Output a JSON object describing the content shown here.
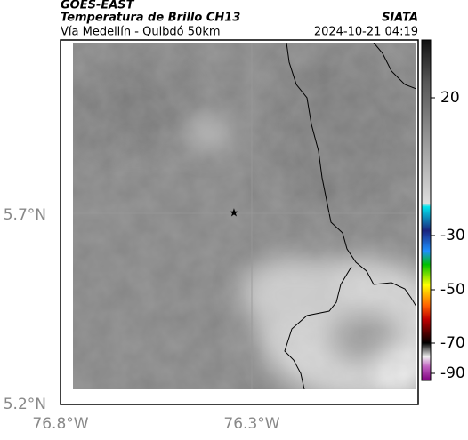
{
  "header": {
    "source": "GOES-EAST",
    "title": "Temperatura de Brillo CH13",
    "subtitle": "Vía Medellín - Quibdó 50km",
    "org": "SIATA",
    "datetime": "2024-10-21 04:19"
  },
  "axes": {
    "lat_labels": [
      "5.7°N",
      "5.2°N"
    ],
    "lon_labels": [
      "76.8°W",
      "76.3°W"
    ]
  },
  "colorbar": {
    "ticks": [
      20,
      -30,
      -50,
      -70,
      -90
    ]
  }
}
